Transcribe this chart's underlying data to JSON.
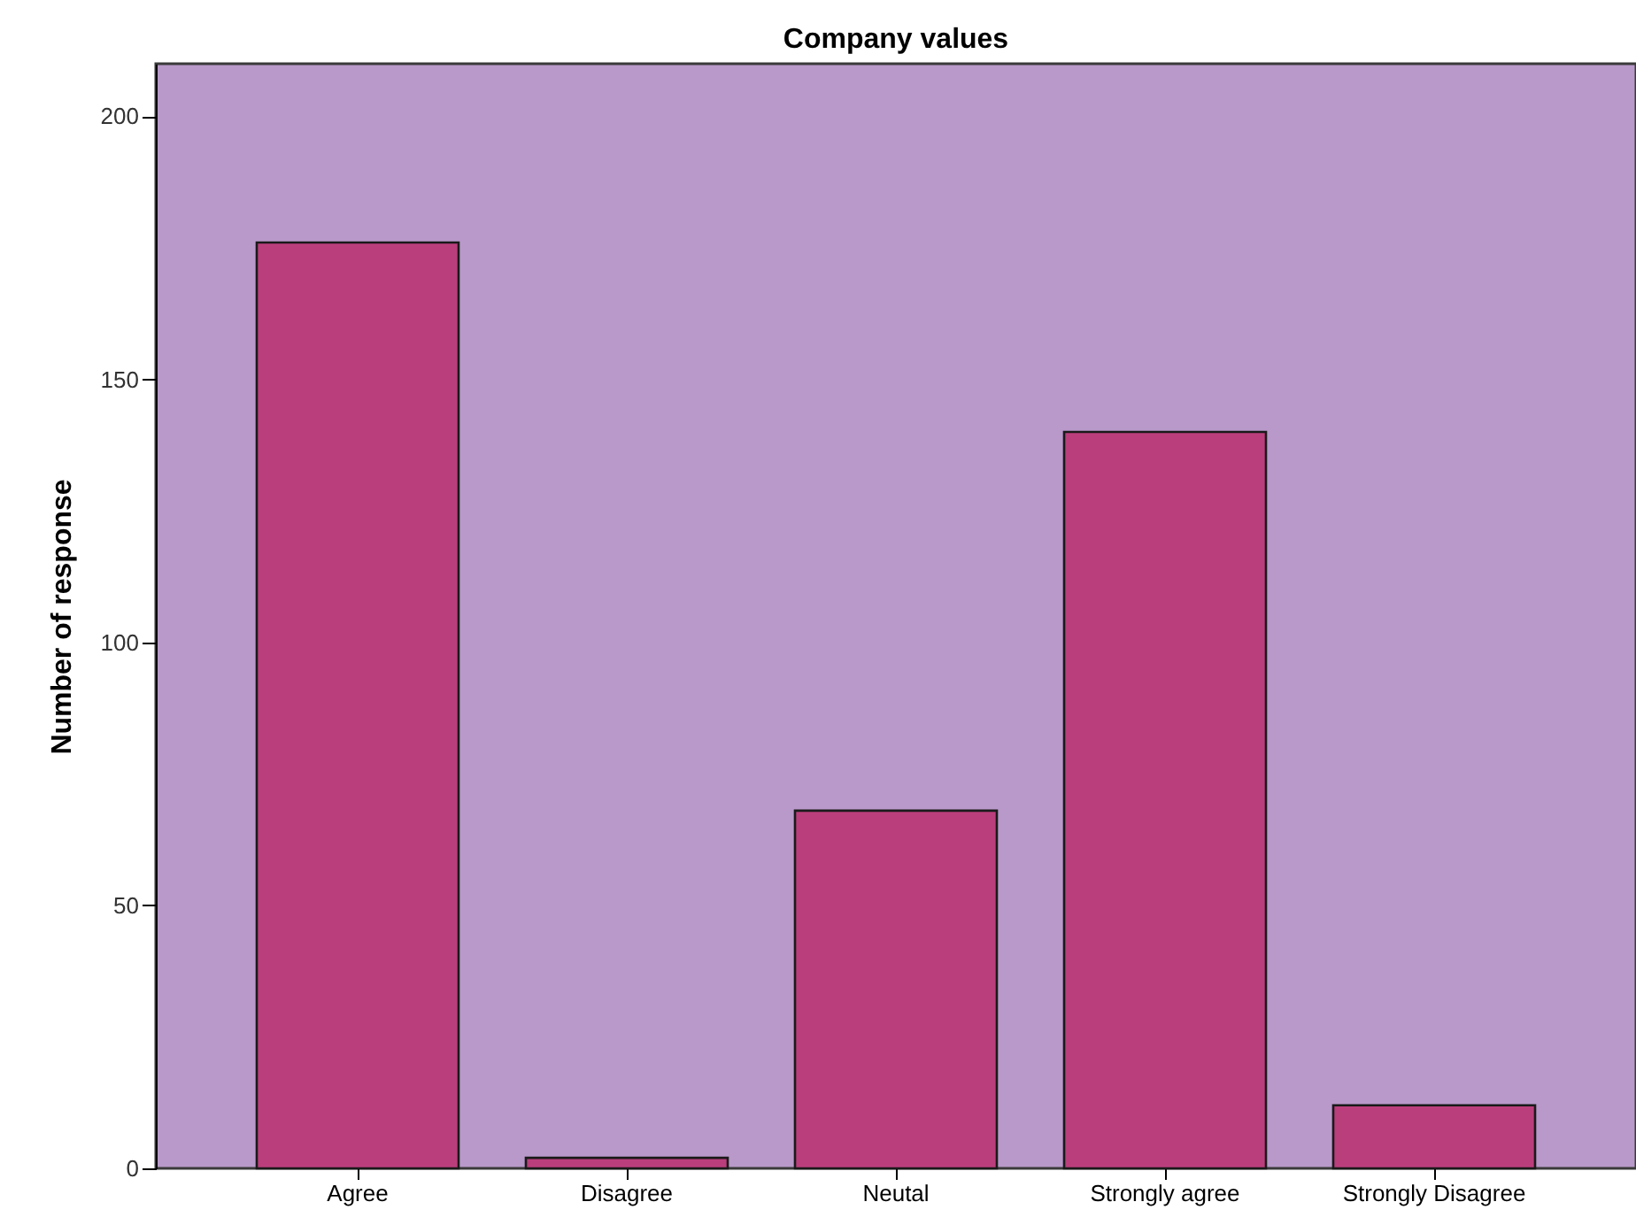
{
  "chart_data": {
    "type": "bar",
    "title": "Company values",
    "ylabel": "Number of response",
    "categories": [
      "Agree",
      "Disagree",
      "Neutal",
      "Strongly agree",
      "Strongly Disagree"
    ],
    "values": [
      176,
      2,
      68,
      140,
      12
    ],
    "color": "#bb3e7c",
    "ylim": [
      0,
      210
    ],
    "yticks": [
      0,
      50,
      100,
      150,
      200
    ],
    "grid": false
  }
}
